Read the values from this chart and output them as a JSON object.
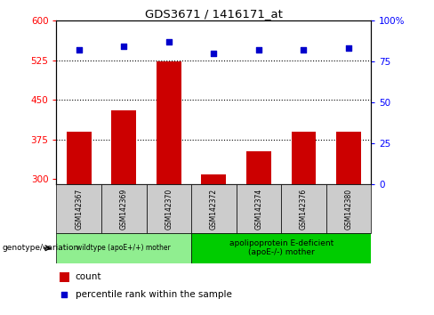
{
  "title": "GDS3671 / 1416171_at",
  "categories": [
    "GSM142367",
    "GSM142369",
    "GSM142370",
    "GSM142372",
    "GSM142374",
    "GSM142376",
    "GSM142380"
  ],
  "bar_values": [
    390,
    430,
    523,
    308,
    352,
    390,
    390
  ],
  "percentile_values": [
    82,
    84,
    87,
    80,
    82,
    82,
    83
  ],
  "ylim_left": [
    290,
    600
  ],
  "ylim_right": [
    0,
    100
  ],
  "yticks_left": [
    300,
    375,
    450,
    525,
    600
  ],
  "yticks_right": [
    0,
    25,
    50,
    75,
    100
  ],
  "bar_color": "#CC0000",
  "scatter_color": "#0000CC",
  "group1_indices": [
    0,
    1,
    2
  ],
  "group2_indices": [
    3,
    4,
    5,
    6
  ],
  "group1_label": "wildtype (apoE+/+) mother",
  "group2_label": "apolipoprotein E-deficient\n(apoE-/-) mother",
  "group1_color": "#90EE90",
  "group2_color": "#00CC00",
  "xlabel_label": "genotype/variation",
  "legend_count_label": "count",
  "legend_pct_label": "percentile rank within the sample",
  "hline_values": [
    375,
    450,
    525
  ],
  "bar_width": 0.55,
  "label_box_color": "#CCCCCC",
  "right_axis_top_label": "100%"
}
